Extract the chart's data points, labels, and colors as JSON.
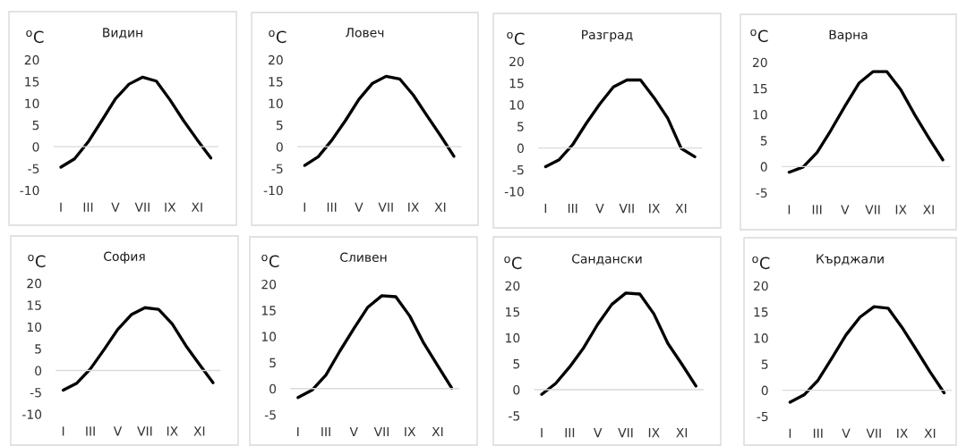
{
  "chart_data": [
    {
      "type": "line",
      "title": "Видин",
      "ylabel": "$^{o}$C",
      "categories": [
        "I",
        null,
        "III",
        null,
        "V",
        null,
        "VII",
        null,
        "IX",
        null,
        "XI",
        null
      ],
      "series": [
        {
          "color": "#000000",
          "values": [
            -4.7,
            -2.8,
            1.1,
            6.0,
            11.0,
            14.4,
            16.0,
            15.1,
            10.8,
            6.0,
            1.6,
            -2.6
          ]
        }
      ],
      "ylim": [
        -10,
        20
      ],
      "yticks": [
        -10,
        -5,
        0,
        5,
        10,
        15,
        20
      ]
    },
    {
      "type": "line",
      "title": "Ловеч",
      "ylabel": "$^{o}$C",
      "categories": [
        "I",
        null,
        "III",
        null,
        "V",
        null,
        "VII",
        null,
        "IX",
        null,
        "XI",
        null
      ],
      "series": [
        {
          "color": "#000000",
          "values": [
            -4.3,
            -2.3,
            1.5,
            6.0,
            10.9,
            14.6,
            16.2,
            15.6,
            11.9,
            7.2,
            2.6,
            -2.2
          ]
        }
      ],
      "ylim": [
        -10,
        20
      ],
      "yticks": [
        -10,
        -5,
        0,
        5,
        10,
        15,
        20
      ]
    },
    {
      "type": "line",
      "title": "Разград",
      "ylabel": "$^{o}$C",
      "categories": [
        "I",
        null,
        "III",
        null,
        "V",
        null,
        "VII",
        null,
        "IX",
        null,
        "XI",
        null
      ],
      "series": [
        {
          "color": "#000000",
          "values": [
            -4.3,
            -2.7,
            0.8,
            5.7,
            10.2,
            14.1,
            15.7,
            15.7,
            11.6,
            6.9,
            -0.1,
            -2.0
          ]
        }
      ],
      "ylim": [
        -10,
        20
      ],
      "yticks": [
        -10,
        -5,
        0,
        5,
        10,
        15,
        20
      ]
    },
    {
      "type": "line",
      "title": "Варна",
      "ylabel": "$^{o}$C",
      "categories": [
        "I",
        null,
        "III",
        null,
        "V",
        null,
        "VII",
        null,
        "IX",
        null,
        "XI",
        null
      ],
      "series": [
        {
          "color": "#000000",
          "values": [
            -1.1,
            -0.1,
            2.7,
            7.0,
            11.6,
            16.0,
            18.2,
            18.2,
            14.7,
            9.9,
            5.5,
            1.3
          ]
        }
      ],
      "ylim": [
        -5,
        20
      ],
      "yticks": [
        -5,
        0,
        5,
        10,
        15,
        20
      ]
    },
    {
      "type": "line",
      "title": "София",
      "ylabel": "$^{o}$C",
      "categories": [
        "I",
        null,
        "III",
        null,
        "V",
        null,
        "VII",
        null,
        "IX",
        null,
        "XI",
        null
      ],
      "series": [
        {
          "color": "#000000",
          "values": [
            -4.5,
            -2.9,
            0.4,
            4.8,
            9.4,
            12.8,
            14.4,
            14.0,
            10.7,
            5.7,
            1.4,
            -2.8
          ]
        }
      ],
      "ylim": [
        -10,
        20
      ],
      "yticks": [
        -10,
        -5,
        0,
        5,
        10,
        15,
        20
      ]
    },
    {
      "type": "line",
      "title": "Сливен",
      "ylabel": "$^{o}$C",
      "categories": [
        "I",
        null,
        "III",
        null,
        "V",
        null,
        "VII",
        null,
        "IX",
        null,
        "XI",
        null
      ],
      "series": [
        {
          "color": "#000000",
          "values": [
            -1.7,
            -0.3,
            2.6,
            7.2,
            11.5,
            15.6,
            17.8,
            17.6,
            13.9,
            8.7,
            4.4,
            0.1
          ]
        }
      ],
      "ylim": [
        -5,
        20
      ],
      "yticks": [
        -5,
        0,
        5,
        10,
        15,
        20
      ]
    },
    {
      "type": "line",
      "title": "Сандански",
      "ylabel": "$^{o}$C",
      "categories": [
        "I",
        null,
        "III",
        null,
        "V",
        null,
        "VII",
        null,
        "IX",
        null,
        "XI",
        null
      ],
      "series": [
        {
          "color": "#000000",
          "values": [
            -0.9,
            1.2,
            4.4,
            8.1,
            12.6,
            16.4,
            18.6,
            18.4,
            14.6,
            8.9,
            4.9,
            0.7
          ]
        }
      ],
      "ylim": [
        -5,
        20
      ],
      "yticks": [
        -5,
        0,
        5,
        10,
        15,
        20
      ]
    },
    {
      "type": "line",
      "title": "Кърджали",
      "ylabel": "$^{o}$C",
      "categories": [
        "I",
        null,
        "III",
        null,
        "V",
        null,
        "VII",
        null,
        "IX",
        null,
        "XI",
        null
      ],
      "series": [
        {
          "color": "#000000",
          "values": [
            -2.3,
            -0.9,
            1.9,
            6.2,
            10.6,
            14.0,
            16.0,
            15.7,
            12.0,
            7.8,
            3.5,
            -0.5
          ]
        }
      ],
      "ylim": [
        -5,
        20
      ],
      "yticks": [
        -5,
        0,
        5,
        10,
        15,
        20
      ]
    }
  ]
}
